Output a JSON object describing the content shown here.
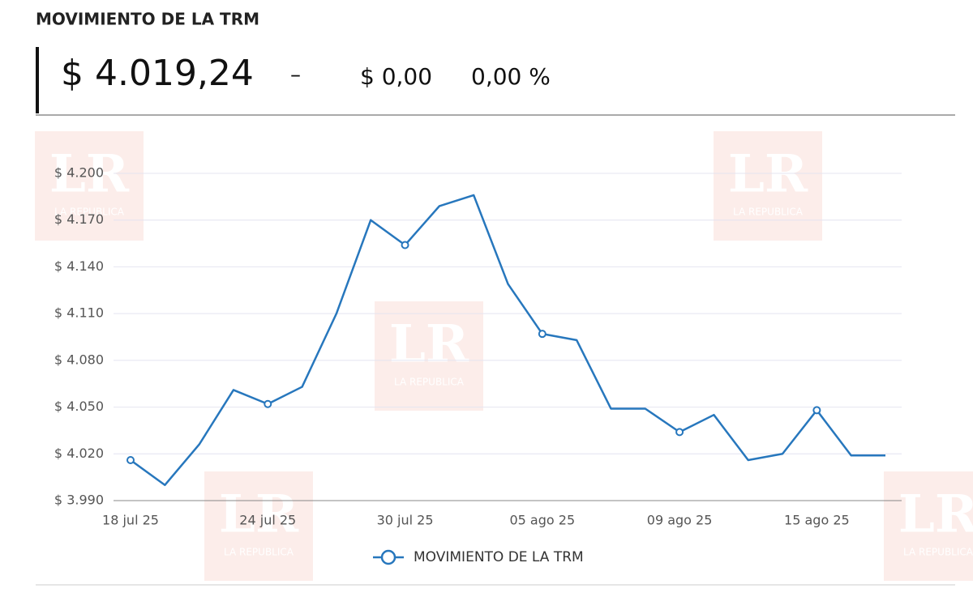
{
  "header": {
    "title": "MOVIMIENTO DE LA TRM",
    "price": "$ 4.019,24",
    "dash": "–",
    "change": "$ 0,00",
    "percent": "0,00 %"
  },
  "watermark": {
    "logo": "LR",
    "text": "LA REPUBLICA"
  },
  "chart_data": {
    "type": "line",
    "categories": [
      "18 jul 25",
      null,
      null,
      null,
      "24 jul 25",
      null,
      null,
      null,
      "30 jul 25",
      null,
      null,
      null,
      "05 ago 25",
      null,
      null,
      null,
      "09 ago 25",
      null,
      null,
      null,
      "15 ago 25",
      null,
      null
    ],
    "series": [
      {
        "name": "MOVIMIENTO DE LA TRM",
        "color": "#2777bd",
        "values": [
          4016,
          4000,
          4026,
          4061,
          4052,
          4063,
          4110,
          4170,
          4154,
          4179,
          4186,
          4129,
          4097,
          4093,
          4049,
          4049,
          4034,
          4045,
          4016,
          4020,
          4048,
          4019,
          4019
        ]
      }
    ],
    "ylim": [
      3990,
      4200
    ],
    "yticks": [
      {
        "value": 3990,
        "label": "$ 3.990"
      },
      {
        "value": 4020,
        "label": "$ 4.020"
      },
      {
        "value": 4050,
        "label": "$ 4.050"
      },
      {
        "value": 4080,
        "label": "$ 4.080"
      },
      {
        "value": 4110,
        "label": "$ 4.110"
      },
      {
        "value": 4140,
        "label": "$ 4.140"
      },
      {
        "value": 4170,
        "label": "$ 4.170"
      },
      {
        "value": 4200,
        "label": "$ 4.200"
      }
    ],
    "grid": true,
    "legend": "bottom"
  }
}
